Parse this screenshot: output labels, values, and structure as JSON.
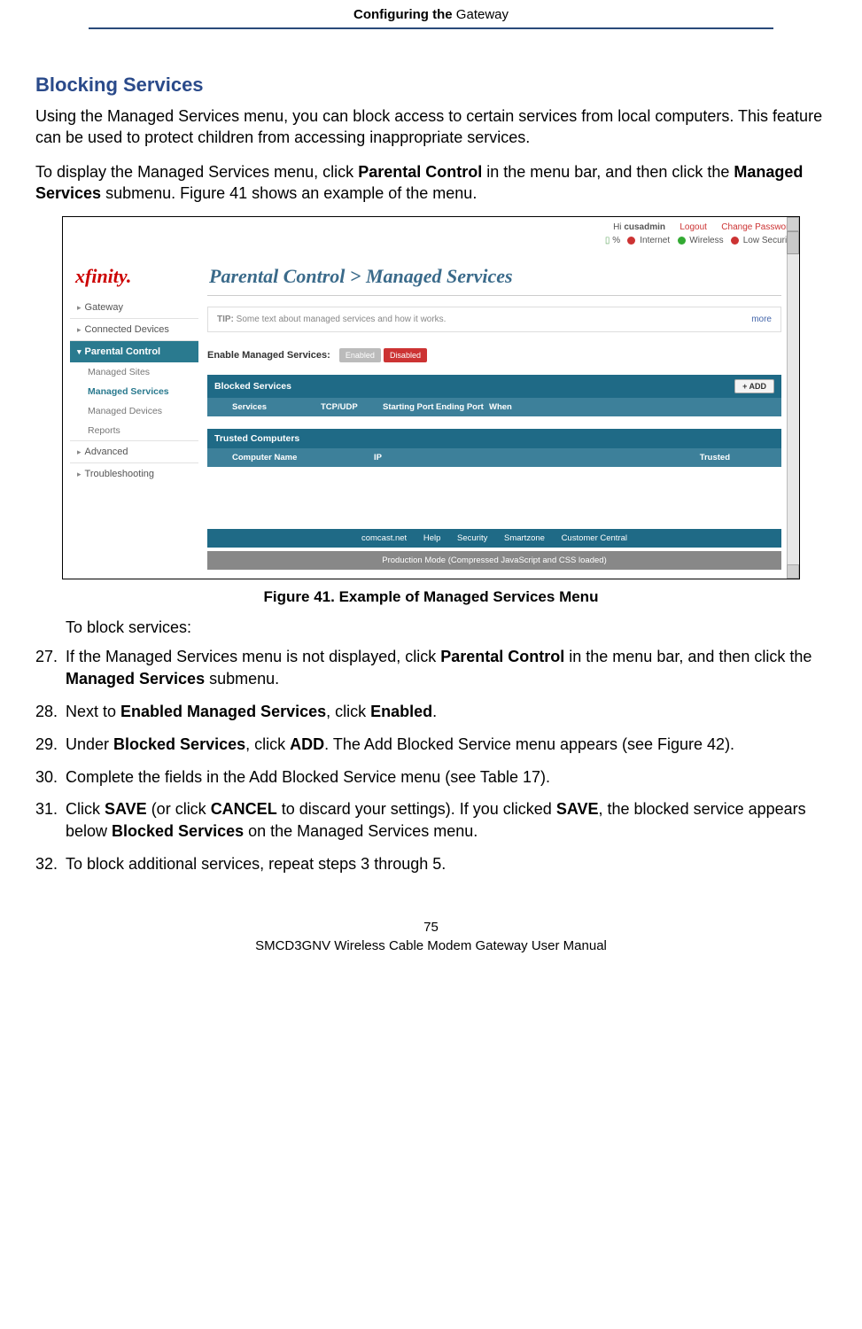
{
  "header": {
    "title_bold": "Configuring the",
    "title_rest": " Gateway"
  },
  "section_title": "Blocking Services",
  "para1": "Using the Managed Services menu, you can block access to certain services from local computers. This feature can be used to protect children from accessing inappropriate services.",
  "para2_pre": "To display the Managed Services menu, click ",
  "para2_b1": "Parental Control",
  "para2_mid": " in the menu bar, and then click the ",
  "para2_b2": "Managed Services",
  "para2_post": " submenu. Figure 41 shows an example of the menu.",
  "screenshot": {
    "logo": "xfinity.",
    "top_user_pre": "Hi ",
    "top_user": "cusadmin",
    "top_logout": "Logout",
    "top_changepw": "Change Password",
    "status_pct": "%",
    "status_internet": "Internet",
    "status_wireless": "Wireless",
    "status_low": "Low Security",
    "nav": {
      "gateway": "Gateway",
      "connected": "Connected Devices",
      "parental": "Parental Control",
      "managed_sites": "Managed Sites",
      "managed_services": "Managed Services",
      "managed_devices": "Managed Devices",
      "reports": "Reports",
      "advanced": "Advanced",
      "troubleshooting": "Troubleshooting"
    },
    "breadcrumb": "Parental Control > Managed Services",
    "tip_label": "TIP:",
    "tip_text": " Some text about managed services and how it works.",
    "tip_more": "more",
    "toggle_label": "Enable Managed Services:",
    "toggle_enabled": "Enabled",
    "toggle_disabled": "Disabled",
    "blocked_title": "Blocked Services",
    "blocked_add": "+ ADD",
    "bh_services": "Services",
    "bh_tcp": "TCP/UDP",
    "bh_start": "Starting Port",
    "bh_end": "Ending Port",
    "bh_when": "When",
    "trusted_title": "Trusted Computers",
    "th_name": "Computer Name",
    "th_ip": "IP",
    "th_trusted": "Trusted",
    "fl_comcast": "comcast.net",
    "fl_help": "Help",
    "fl_security": "Security",
    "fl_smartzone": "Smartzone",
    "fl_custcentral": "Customer Central",
    "footer_mode": "Production Mode (Compressed JavaScript and CSS loaded)"
  },
  "figure_caption": "Figure 41. Example of Managed Services Menu",
  "intro_steps": "To block services:",
  "steps": {
    "n27": "27.",
    "s27_pre": "If the Managed Services menu is not displayed, click ",
    "s27_b1": "Parental Control",
    "s27_mid": " in the menu bar, and then click the ",
    "s27_b2": "Managed Services",
    "s27_post": " submenu.",
    "n28": "28.",
    "s28_pre": "Next to ",
    "s28_b1": "Enabled Managed Services",
    "s28_mid": ", click ",
    "s28_b2": "Enabled",
    "s28_post": ".",
    "n29": "29.",
    "s29_pre": "Under ",
    "s29_b1": "Blocked Services",
    "s29_mid": ", click ",
    "s29_b2": "ADD",
    "s29_post": ". The Add Blocked Service menu appears (see Figure 42).",
    "n30": "30.",
    "s30": "Complete the fields in the Add Blocked Service menu (see Table 17).",
    "n31": "31.",
    "s31_pre": "Click ",
    "s31_b1": "SAVE",
    "s31_mid1": " (or click ",
    "s31_b2": "CANCEL",
    "s31_mid2": " to discard your settings). If you clicked ",
    "s31_b3": "SAVE",
    "s31_mid3": ", the blocked service appears below ",
    "s31_b4": "Blocked Services",
    "s31_post": " on the Managed Services menu.",
    "n32": "32.",
    "s32": "To block additional services, repeat steps 3 through 5."
  },
  "footer": {
    "page_num": "75",
    "manual": "SMCD3GNV Wireless Cable Modem Gateway User Manual"
  }
}
